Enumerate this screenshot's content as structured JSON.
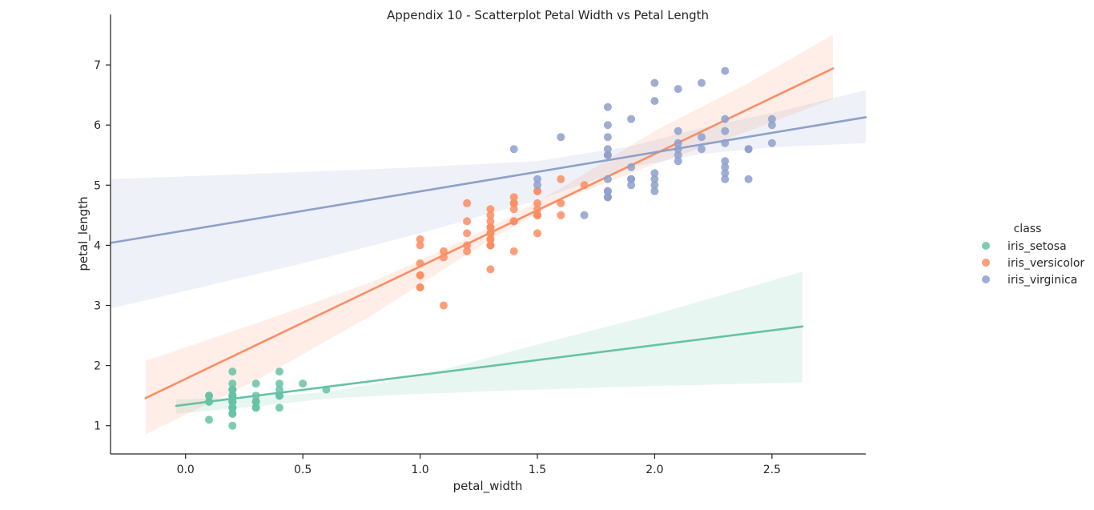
{
  "chart_data": {
    "type": "scatter",
    "title": "Appendix 10 - Scatterplot Petal Width vs Petal Length",
    "xlabel": "petal_width",
    "ylabel": "petal_length",
    "xlim": [
      -0.32,
      2.9
    ],
    "ylim": [
      0.53,
      7.84
    ],
    "xticks": [
      "0.0",
      "0.5",
      "1.0",
      "1.5",
      "2.0",
      "2.5"
    ],
    "yticks": [
      "1",
      "2",
      "3",
      "4",
      "5",
      "6",
      "7"
    ],
    "grid": false,
    "legend": {
      "title": "class",
      "position": "right"
    },
    "series": [
      {
        "name": "iris_setosa",
        "color": "#66c2a5",
        "points": [
          [
            0.2,
            1.4
          ],
          [
            0.2,
            1.4
          ],
          [
            0.2,
            1.3
          ],
          [
            0.2,
            1.5
          ],
          [
            0.2,
            1.4
          ],
          [
            0.4,
            1.7
          ],
          [
            0.3,
            1.4
          ],
          [
            0.2,
            1.5
          ],
          [
            0.2,
            1.4
          ],
          [
            0.1,
            1.5
          ],
          [
            0.2,
            1.5
          ],
          [
            0.2,
            1.6
          ],
          [
            0.1,
            1.4
          ],
          [
            0.1,
            1.1
          ],
          [
            0.2,
            1.2
          ],
          [
            0.4,
            1.5
          ],
          [
            0.4,
            1.3
          ],
          [
            0.3,
            1.4
          ],
          [
            0.3,
            1.7
          ],
          [
            0.3,
            1.5
          ],
          [
            0.2,
            1.7
          ],
          [
            0.4,
            1.5
          ],
          [
            0.2,
            1.0
          ],
          [
            0.5,
            1.7
          ],
          [
            0.2,
            1.9
          ],
          [
            0.2,
            1.6
          ],
          [
            0.4,
            1.6
          ],
          [
            0.2,
            1.5
          ],
          [
            0.2,
            1.4
          ],
          [
            0.2,
            1.6
          ],
          [
            0.2,
            1.6
          ],
          [
            0.4,
            1.5
          ],
          [
            0.1,
            1.5
          ],
          [
            0.2,
            1.4
          ],
          [
            0.2,
            1.5
          ],
          [
            0.2,
            1.2
          ],
          [
            0.2,
            1.3
          ],
          [
            0.1,
            1.4
          ],
          [
            0.2,
            1.3
          ],
          [
            0.2,
            1.5
          ],
          [
            0.3,
            1.3
          ],
          [
            0.3,
            1.3
          ],
          [
            0.2,
            1.3
          ],
          [
            0.6,
            1.6
          ],
          [
            0.4,
            1.9
          ],
          [
            0.3,
            1.4
          ],
          [
            0.2,
            1.6
          ],
          [
            0.2,
            1.4
          ],
          [
            0.2,
            1.5
          ],
          [
            0.2,
            1.4
          ]
        ],
        "fit": {
          "x": [
            -0.04,
            2.63
          ],
          "y": [
            1.33,
            2.65
          ]
        },
        "ci": {
          "x": [
            -0.04,
            0.3,
            0.6,
            1.0,
            1.5,
            2.0,
            2.63
          ],
          "lower": [
            1.2,
            1.32,
            1.45,
            1.53,
            1.6,
            1.66,
            1.72
          ],
          "upper": [
            1.44,
            1.47,
            1.56,
            1.83,
            2.35,
            2.85,
            3.56
          ]
        }
      },
      {
        "name": "iris_versicolor",
        "color": "#fc8d62",
        "points": [
          [
            1.4,
            4.7
          ],
          [
            1.5,
            4.5
          ],
          [
            1.5,
            4.9
          ],
          [
            1.3,
            4.0
          ],
          [
            1.5,
            4.6
          ],
          [
            1.3,
            4.5
          ],
          [
            1.6,
            4.7
          ],
          [
            1.0,
            3.3
          ],
          [
            1.3,
            4.6
          ],
          [
            1.4,
            3.9
          ],
          [
            1.0,
            3.5
          ],
          [
            1.5,
            4.2
          ],
          [
            1.0,
            4.0
          ],
          [
            1.4,
            4.7
          ],
          [
            1.3,
            3.6
          ],
          [
            1.4,
            4.4
          ],
          [
            1.5,
            4.5
          ],
          [
            1.0,
            4.1
          ],
          [
            1.5,
            4.5
          ],
          [
            1.1,
            3.9
          ],
          [
            1.8,
            4.8
          ],
          [
            1.3,
            4.0
          ],
          [
            1.5,
            4.9
          ],
          [
            1.2,
            4.7
          ],
          [
            1.3,
            4.3
          ],
          [
            1.4,
            4.4
          ],
          [
            1.4,
            4.8
          ],
          [
            1.7,
            5.0
          ],
          [
            1.5,
            4.5
          ],
          [
            1.0,
            3.5
          ],
          [
            1.1,
            3.8
          ],
          [
            1.0,
            3.7
          ],
          [
            1.2,
            3.9
          ],
          [
            1.6,
            5.1
          ],
          [
            1.5,
            4.5
          ],
          [
            1.6,
            4.5
          ],
          [
            1.5,
            4.7
          ],
          [
            1.3,
            4.4
          ],
          [
            1.3,
            4.1
          ],
          [
            1.3,
            4.0
          ],
          [
            1.2,
            4.4
          ],
          [
            1.4,
            4.6
          ],
          [
            1.2,
            4.0
          ],
          [
            1.0,
            3.3
          ],
          [
            1.3,
            4.2
          ],
          [
            1.2,
            4.2
          ],
          [
            1.3,
            4.2
          ],
          [
            1.3,
            4.3
          ],
          [
            1.1,
            3.0
          ],
          [
            1.3,
            4.1
          ]
        ],
        "fit": {
          "x": [
            -0.17,
            2.76
          ],
          "y": [
            1.46,
            6.94
          ]
        },
        "ci": {
          "x": [
            -0.17,
            0.3,
            0.8,
            1.0,
            1.3,
            1.6,
            2.0,
            2.4,
            2.76
          ],
          "lower": [
            0.86,
            1.75,
            2.85,
            3.35,
            4.1,
            4.75,
            5.35,
            5.9,
            6.43
          ],
          "upper": [
            2.08,
            2.7,
            3.4,
            3.75,
            4.3,
            4.95,
            5.9,
            6.7,
            7.5
          ]
        }
      },
      {
        "name": "iris_virginica",
        "color": "#8da0cb",
        "points": [
          [
            2.5,
            6.0
          ],
          [
            1.9,
            5.1
          ],
          [
            2.1,
            5.9
          ],
          [
            1.8,
            5.6
          ],
          [
            2.2,
            5.8
          ],
          [
            2.1,
            6.6
          ],
          [
            1.7,
            4.5
          ],
          [
            1.8,
            6.3
          ],
          [
            1.8,
            5.8
          ],
          [
            2.5,
            6.1
          ],
          [
            2.0,
            5.1
          ],
          [
            1.9,
            5.3
          ],
          [
            2.1,
            5.5
          ],
          [
            2.0,
            5.0
          ],
          [
            2.4,
            5.1
          ],
          [
            2.3,
            5.3
          ],
          [
            1.8,
            5.5
          ],
          [
            2.2,
            6.7
          ],
          [
            2.3,
            6.9
          ],
          [
            1.5,
            5.0
          ],
          [
            2.3,
            5.7
          ],
          [
            2.0,
            4.9
          ],
          [
            2.0,
            6.7
          ],
          [
            1.8,
            4.9
          ],
          [
            2.1,
            5.7
          ],
          [
            1.8,
            6.0
          ],
          [
            1.8,
            4.8
          ],
          [
            1.8,
            4.9
          ],
          [
            2.1,
            5.6
          ],
          [
            1.6,
            5.8
          ],
          [
            1.9,
            6.1
          ],
          [
            2.0,
            6.4
          ],
          [
            2.2,
            5.6
          ],
          [
            1.5,
            5.1
          ],
          [
            1.4,
            5.6
          ],
          [
            2.3,
            6.1
          ],
          [
            2.4,
            5.6
          ],
          [
            1.8,
            5.5
          ],
          [
            1.8,
            4.8
          ],
          [
            2.1,
            5.4
          ],
          [
            2.4,
            5.6
          ],
          [
            2.3,
            5.1
          ],
          [
            1.9,
            5.1
          ],
          [
            2.3,
            5.9
          ],
          [
            2.5,
            5.7
          ],
          [
            2.3,
            5.2
          ],
          [
            1.9,
            5.0
          ],
          [
            2.0,
            5.2
          ],
          [
            2.3,
            5.4
          ],
          [
            1.8,
            5.1
          ]
        ],
        "fit": {
          "x": [
            -0.32,
            2.9
          ],
          "y": [
            4.04,
            6.13
          ]
        },
        "ci": {
          "x": [
            -0.32,
            0.5,
            1.0,
            1.5,
            1.9,
            2.2,
            2.5,
            2.9
          ],
          "lower": [
            2.95,
            3.7,
            4.2,
            4.75,
            5.3,
            5.52,
            5.63,
            5.7
          ],
          "upper": [
            5.1,
            5.22,
            5.3,
            5.4,
            5.65,
            5.95,
            6.2,
            6.58
          ]
        }
      }
    ]
  }
}
